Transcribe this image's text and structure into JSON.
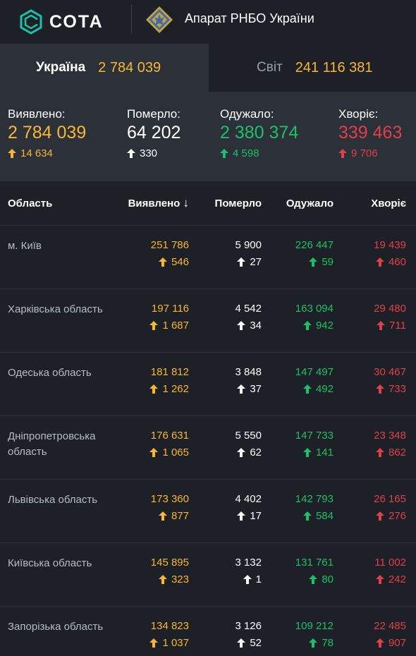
{
  "header": {
    "logo_text": "СОТА",
    "org_name": "Апарат РНБО України"
  },
  "tabs": {
    "ukraine": {
      "label": "Україна",
      "value": "2 784 039"
    },
    "world": {
      "label": "Світ",
      "value": "241 116 381"
    }
  },
  "summary": {
    "confirmed": {
      "label": "Виявлено:",
      "value": "2 784 039",
      "delta": "14 634"
    },
    "deaths": {
      "label": "Померло:",
      "value": "64 202",
      "delta": "330"
    },
    "recovered": {
      "label": "Одужало:",
      "value": "2 380 374",
      "delta": "4 598"
    },
    "active": {
      "label": "Хворіє:",
      "value": "339 463",
      "delta": "9 706"
    }
  },
  "table": {
    "headers": {
      "region": "Область",
      "confirmed": "Виявлено",
      "deaths": "Померло",
      "recovered": "Одужало",
      "active": "Хворіє"
    },
    "sort_indicator": "↓",
    "rows": [
      {
        "region": "м. Київ",
        "confirmed": "251 786",
        "confirmed_delta": "546",
        "deaths": "5 900",
        "deaths_delta": "27",
        "recovered": "226 447",
        "recovered_delta": "59",
        "active": "19 439",
        "active_delta": "460"
      },
      {
        "region": "Харківська область",
        "confirmed": "197 116",
        "confirmed_delta": "1 687",
        "deaths": "4 542",
        "deaths_delta": "34",
        "recovered": "163 094",
        "recovered_delta": "942",
        "active": "29 480",
        "active_delta": "711"
      },
      {
        "region": "Одеська область",
        "confirmed": "181 812",
        "confirmed_delta": "1 262",
        "deaths": "3 848",
        "deaths_delta": "37",
        "recovered": "147 497",
        "recovered_delta": "492",
        "active": "30 467",
        "active_delta": "733"
      },
      {
        "region": "Дніпропетровська область",
        "confirmed": "176 631",
        "confirmed_delta": "1 065",
        "deaths": "5 550",
        "deaths_delta": "62",
        "recovered": "147 733",
        "recovered_delta": "141",
        "active": "23 348",
        "active_delta": "862"
      },
      {
        "region": "Львівська область",
        "confirmed": "173 360",
        "confirmed_delta": "877",
        "deaths": "4 402",
        "deaths_delta": "17",
        "recovered": "142 793",
        "recovered_delta": "584",
        "active": "26 165",
        "active_delta": "276"
      },
      {
        "region": "Київська область",
        "confirmed": "145 895",
        "confirmed_delta": "323",
        "deaths": "3 132",
        "deaths_delta": "1",
        "recovered": "131 761",
        "recovered_delta": "80",
        "active": "11 002",
        "active_delta": "242"
      },
      {
        "region": "Запорізька область",
        "confirmed": "134 823",
        "confirmed_delta": "1 037",
        "deaths": "3 126",
        "deaths_delta": "52",
        "recovered": "109 212",
        "recovered_delta": "78",
        "active": "22 485",
        "active_delta": "907"
      }
    ]
  },
  "colors": {
    "confirmed": "#f6b733",
    "deaths": "#ffffff",
    "recovered": "#1fbf6a",
    "active": "#e0404a",
    "background": "#1d2026",
    "panel": "#2c3039"
  },
  "icons": {
    "logo": "sota-logo-icon",
    "emblem": "rnbo-emblem-icon",
    "delta": "arrow-up-icon"
  }
}
